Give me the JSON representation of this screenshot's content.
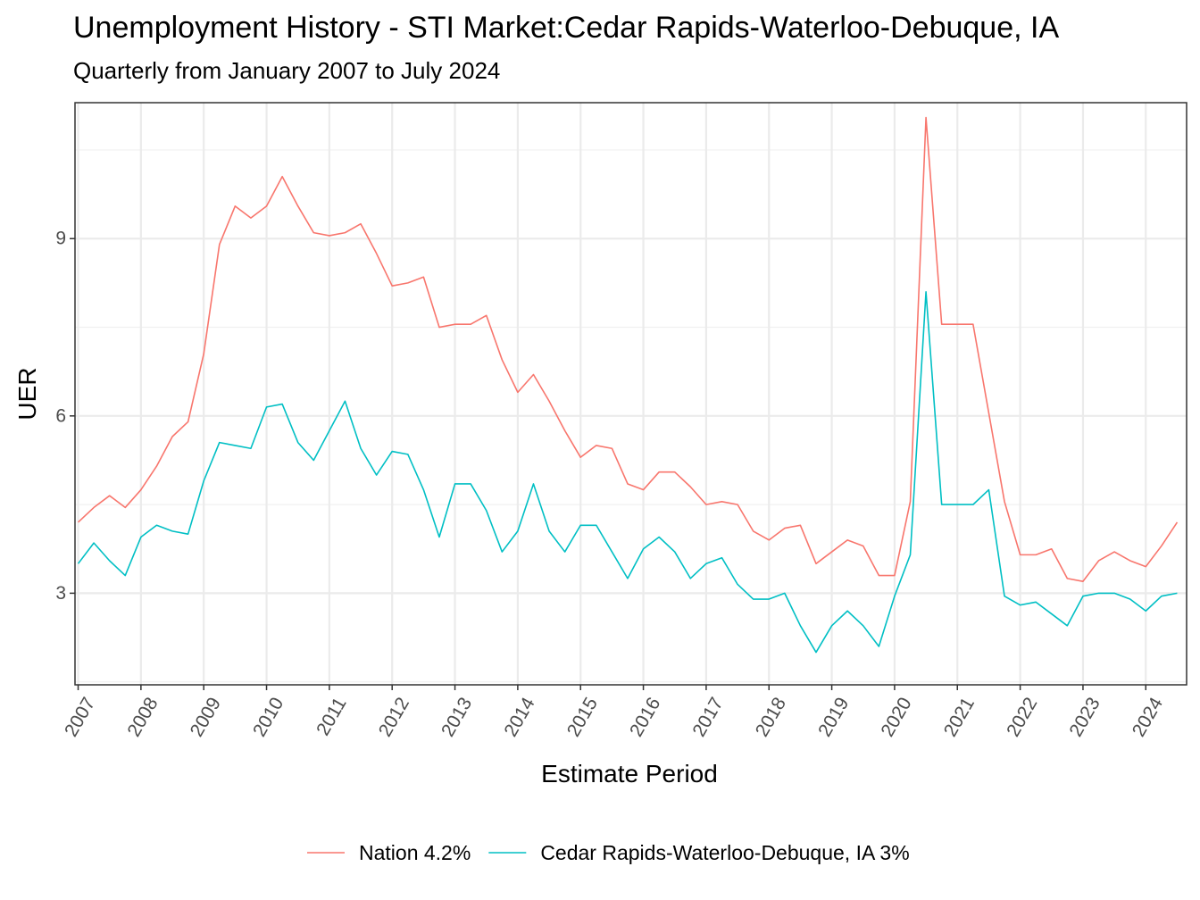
{
  "chart_data": {
    "type": "line",
    "title": "Unemployment History - STI Market:Cedar Rapids-Waterloo-Debuque, IA",
    "subtitle": "Quarterly from January 2007 to July 2024",
    "xlabel": "Estimate Period",
    "ylabel": "UER",
    "xlim": [
      2006.95,
      2024.65
    ],
    "ylim": [
      1.45,
      11.3
    ],
    "x_ticks": [
      "2007",
      "2008",
      "2009",
      "2010",
      "2011",
      "2012",
      "2013",
      "2014",
      "2015",
      "2016",
      "2017",
      "2018",
      "2019",
      "2020",
      "2021",
      "2022",
      "2023",
      "2024"
    ],
    "y_ticks": [
      3,
      6,
      9
    ],
    "grid": true,
    "legend_position": "bottom",
    "x_start": "2007 Q1",
    "x_step": "quarter",
    "series": [
      {
        "name": "Nation 4.2%",
        "color": "#F8766D",
        "values": [
          4.2,
          4.45,
          4.65,
          4.45,
          4.75,
          5.15,
          5.65,
          5.9,
          7.05,
          8.9,
          9.55,
          9.35,
          9.55,
          10.05,
          9.55,
          9.1,
          9.05,
          9.1,
          9.25,
          8.75,
          8.2,
          8.25,
          8.35,
          7.5,
          7.55,
          7.55,
          7.7,
          6.95,
          6.4,
          6.7,
          6.25,
          5.75,
          5.3,
          5.5,
          5.45,
          4.85,
          4.75,
          5.05,
          5.05,
          4.8,
          4.5,
          4.55,
          4.5,
          4.05,
          3.9,
          4.1,
          4.15,
          3.5,
          3.7,
          3.9,
          3.8,
          3.3,
          3.3,
          4.55,
          11.05,
          7.55,
          7.55,
          7.55,
          6.05,
          4.55,
          3.65,
          3.65,
          3.75,
          3.25,
          3.2,
          3.55,
          3.7,
          3.55,
          3.45,
          3.8,
          4.2
        ]
      },
      {
        "name": "Cedar Rapids-Waterloo-Debuque, IA 3%",
        "color": "#00BFC4",
        "values": [
          3.5,
          3.85,
          3.55,
          3.3,
          3.95,
          4.15,
          4.05,
          4.0,
          4.9,
          5.55,
          5.5,
          5.45,
          6.15,
          6.2,
          5.55,
          5.25,
          5.75,
          6.25,
          5.45,
          5.0,
          5.4,
          5.35,
          4.75,
          3.95,
          4.85,
          4.85,
          4.4,
          3.7,
          4.05,
          4.85,
          4.05,
          3.7,
          4.15,
          4.15,
          3.7,
          3.25,
          3.75,
          3.95,
          3.7,
          3.25,
          3.5,
          3.6,
          3.15,
          2.9,
          2.9,
          3.0,
          2.45,
          2.0,
          2.45,
          2.7,
          2.45,
          2.1,
          2.95,
          3.65,
          8.1,
          4.5,
          4.5,
          4.5,
          4.75,
          2.95,
          2.8,
          2.85,
          2.65,
          2.45,
          2.95,
          3.0,
          3.0,
          2.9,
          2.7,
          2.95,
          3.0
        ]
      }
    ]
  }
}
